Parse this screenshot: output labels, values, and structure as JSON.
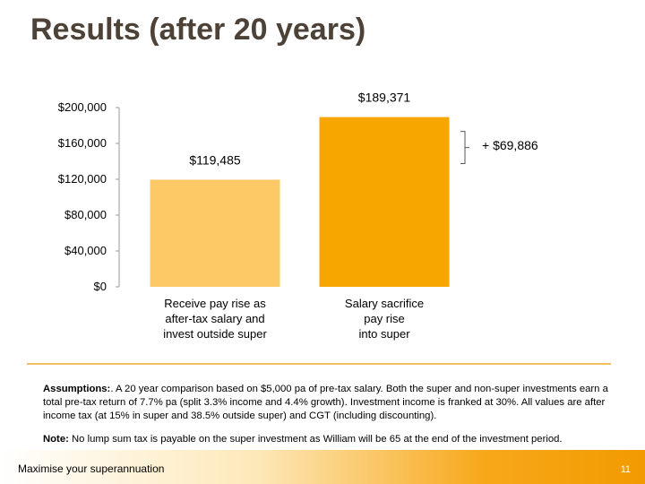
{
  "slide": {
    "title": "Results (after 20 years)",
    "footer_text": "Maximise your superannuation",
    "page_number": "11"
  },
  "chart_data": {
    "type": "bar",
    "categories": [
      "Receive pay rise as\nafter-tax salary and\ninvest outside super",
      "Salary sacrifice\npay rise\ninto super"
    ],
    "values": [
      119485,
      189371
    ],
    "data_labels": [
      "$119,485",
      "$189,371"
    ],
    "bar_colors": [
      "#fdc966",
      "#f7a600"
    ],
    "yticks": [
      0,
      40000,
      80000,
      120000,
      160000,
      200000
    ],
    "ytick_labels": [
      "$0",
      "$40,000",
      "$80,000",
      "$120,000",
      "$160,000",
      "$200,000"
    ],
    "ylim": [
      0,
      200000
    ],
    "difference_label": "+ $69,886"
  },
  "notes": {
    "assumptions_label": "Assumptions:",
    "assumptions_text": ". A 20 year comparison based on $5,000 pa of pre-tax salary. Both the super and non-super investments earn a total pre-tax return of 7.7% pa (split 3.3% income and 4.4% growth). Investment income is franked at 30%. All values are after income tax (at 15% in super and 38.5% outside super) and CGT (including discounting).",
    "note_label": "Note:",
    "note_text": " No lump sum tax is payable on the super investment as William will be 65 at the end of the investment period."
  },
  "colors": {
    "title": "#4d4237",
    "divider": "#f0c060",
    "footer_accent": "#f29a00"
  }
}
